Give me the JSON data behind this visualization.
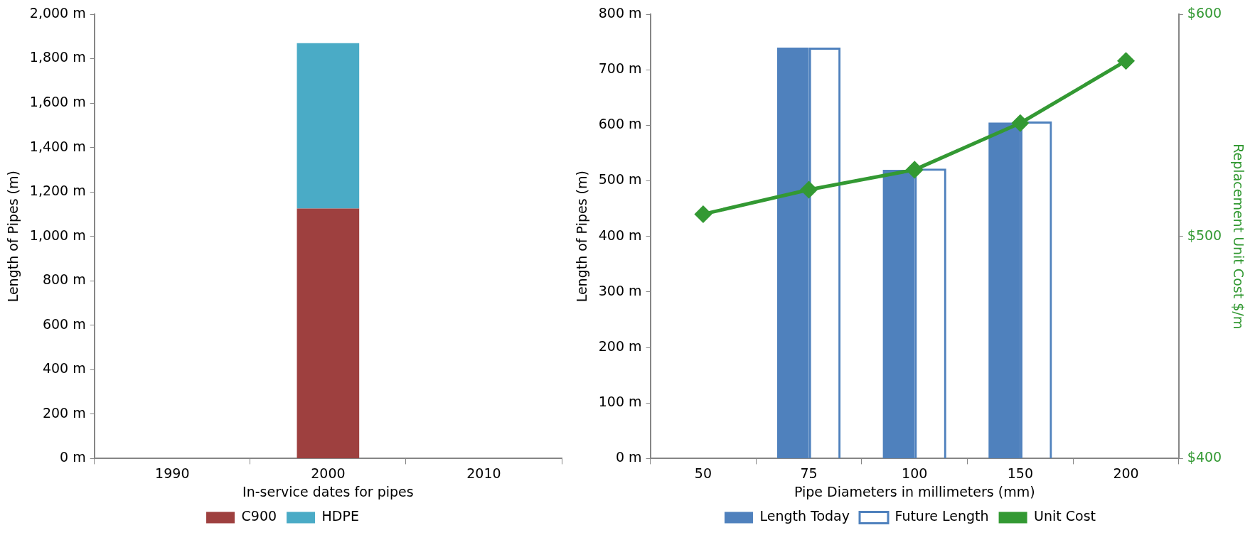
{
  "chart_data": [
    {
      "type": "bar",
      "stacked": true,
      "xlabel": "In-service dates for pipes",
      "ylabel": "Length of Pipes (m)",
      "categories": [
        "1990",
        "2000",
        "2010"
      ],
      "series": [
        {
          "name": "C900",
          "color": "#9e403f",
          "values": [
            null,
            1125,
            null
          ]
        },
        {
          "name": "HDPE",
          "color": "#4aabc6",
          "values": [
            null,
            745,
            null
          ]
        }
      ],
      "ylim": [
        0,
        2000
      ],
      "yticks": [
        {
          "value": 0,
          "label": "0 m"
        },
        {
          "value": 200,
          "label": "200 m"
        },
        {
          "value": 400,
          "label": "400 m"
        },
        {
          "value": 600,
          "label": "600 m"
        },
        {
          "value": 800,
          "label": "800 m"
        },
        {
          "value": 1000,
          "label": "1,000 m"
        },
        {
          "value": 1200,
          "label": "1,200 m"
        },
        {
          "value": 1400,
          "label": "1,400 m"
        },
        {
          "value": 1600,
          "label": "1,600 m"
        },
        {
          "value": 1800,
          "label": "1,800 m"
        },
        {
          "value": 2000,
          "label": "2,000 m"
        }
      ],
      "grid": false,
      "legend": "bottom"
    },
    {
      "type": "bar",
      "xlabel": "Pipe Diameters in millimeters (mm)",
      "ylabel": "Length of Pipes (m)",
      "y2label": "Replacement Unit Cost $/m",
      "categories": [
        "50",
        "75",
        "100",
        "150",
        "200"
      ],
      "series": [
        {
          "name": "Length Today",
          "color": "#4f81bd",
          "values": [
            null,
            740,
            520,
            605,
            null
          ]
        },
        {
          "name": "Future Length",
          "color": "#4f81bd",
          "values": [
            null,
            740,
            522,
            607,
            null
          ]
        },
        {
          "name": "Unit Cost",
          "type": "line",
          "axis": "y2",
          "color": "#339933",
          "marker": "diamond",
          "values": [
            510,
            521,
            530,
            551,
            579
          ]
        }
      ],
      "ylim": [
        0,
        800
      ],
      "yticks": [
        {
          "value": 0,
          "label": "0 m"
        },
        {
          "value": 100,
          "label": "100 m"
        },
        {
          "value": 200,
          "label": "200 m"
        },
        {
          "value": 300,
          "label": "300 m"
        },
        {
          "value": 400,
          "label": "400 m"
        },
        {
          "value": 500,
          "label": "500 m"
        },
        {
          "value": 600,
          "label": "600 m"
        },
        {
          "value": 700,
          "label": "700 m"
        },
        {
          "value": 800,
          "label": "800 m"
        }
      ],
      "y2lim": [
        400,
        600
      ],
      "y2ticks": [
        {
          "value": 400,
          "label": "$400"
        },
        {
          "value": 500,
          "label": "$500"
        },
        {
          "value": 600,
          "label": "$600"
        }
      ],
      "grid": false,
      "legend": "bottom"
    }
  ]
}
